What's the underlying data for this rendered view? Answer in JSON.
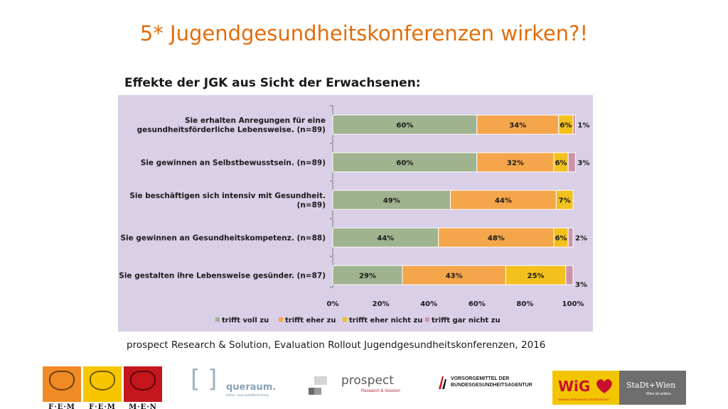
{
  "title": "5* Jugendgesundheitskonferenzen wirken?!",
  "subtitle": "Effekte der JGK aus Sicht der Erwachsenen:",
  "source": "prospect Research & Solution, Evaluation Rollout Jugendgesundheitskonferenzen, 2016",
  "chart_data": {
    "type": "bar",
    "orientation": "horizontal",
    "stacked": true,
    "categories": [
      "Sie erhalten Anregungen für eine gesundheitsförderliche Lebensweise. (n=89)",
      "Sie gewinnen an Selbstbewusstsein. (n=89)",
      "Sie beschäftigen sich intensiv mit Gesundheit. (n=89)",
      "Sie gewinnen an Gesundheitskompetenz. (n=88)",
      "Sie gestalten ihre Lebensweise gesünder. (n=87)"
    ],
    "category_lines": [
      [
        "Sie erhalten Anregungen für eine",
        "gesundheitsförderliche Lebensweise. (n=89)"
      ],
      [
        "Sie gewinnen an Selbstbewusstsein. (n=89)"
      ],
      [
        "Sie beschäftigen sich intensiv mit Gesundheit.",
        "(n=89)"
      ],
      [
        "Sie gewinnen an Gesundheitskompetenz. (n=88)"
      ],
      [
        "Sie gestalten ihre Lebensweise gesünder. (n=87)"
      ]
    ],
    "series": [
      {
        "name": "trifft voll zu",
        "color": "#9fb38e",
        "values": [
          60,
          60,
          49,
          44,
          29
        ]
      },
      {
        "name": "trifft eher zu",
        "color": "#f5a54a",
        "values": [
          34,
          32,
          44,
          48,
          43
        ]
      },
      {
        "name": "trifft eher nicht zu",
        "color": "#f2c11d",
        "values": [
          6,
          6,
          7,
          6,
          25
        ]
      },
      {
        "name": "trifft gar nicht zu",
        "color": "#cc94ac",
        "values": [
          1,
          3,
          0,
          2,
          3
        ]
      }
    ],
    "data_labels": [
      [
        "60%",
        "34%",
        "6%",
        "1%"
      ],
      [
        "60%",
        "32%",
        "6%",
        "3%"
      ],
      [
        "49%",
        "44%",
        "7%",
        ""
      ],
      [
        "44%",
        "48%",
        "6%",
        "2%"
      ],
      [
        "29%",
        "43%",
        "25%",
        "3%"
      ]
    ],
    "xlim": [
      0,
      100
    ],
    "xticks": [
      "0%",
      "20%",
      "40%",
      "60%",
      "80%",
      "100%"
    ],
    "xlabel": "",
    "ylabel": "",
    "grid": false,
    "legend_position": "bottom"
  },
  "logos": {
    "fem": [
      "F·E·M",
      "F·E·M",
      "M·E·N"
    ],
    "queraum_name": "queraum.",
    "queraum_sub": "kultur- und sozialforschung",
    "prospect_name": "prospect",
    "prospect_sub": "Research & Solution",
    "vga_line1": "VORSORGEMITTEL DER",
    "vga_line2": "BUNDESGESUNDHEITSAGENTUR",
    "wig_name": "WiG",
    "wig_sub": "WIENER GESUNDHEITSFÖRDERUNG",
    "wien_name": "StaDt+Wien",
    "wien_sub": "Wien ist anders."
  },
  "colors": {
    "title": "#e36c0a",
    "chart_background": "#d9cfe6",
    "fem_orange": "#f08a24",
    "fem_yellow": "#f7c600",
    "fem_red": "#c4161c"
  }
}
